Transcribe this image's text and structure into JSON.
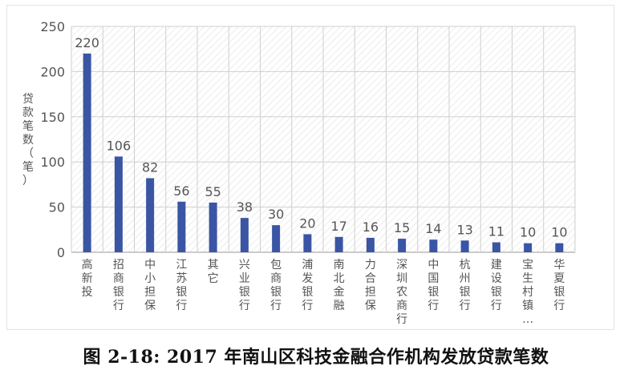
{
  "figure": {
    "caption": "图 2-18: 2017 年南山区科技金融合作机构发放贷款笔数"
  },
  "chart_data": {
    "type": "bar",
    "title": "",
    "xlabel": "",
    "ylabel": "贷款笔数（笔）",
    "ylim": [
      0,
      250
    ],
    "yticks": [
      0,
      50,
      100,
      150,
      200,
      250
    ],
    "grid": true,
    "legend": "none",
    "categories": [
      "高新投",
      "招商银行",
      "中小担保",
      "江苏银行",
      "其它",
      "兴业银行",
      "包商银行",
      "浦发银行",
      "南北金融",
      "力合担保",
      "深圳农商行",
      "中国银行",
      "杭州银行",
      "建设银行",
      "宝生村镇…",
      "华夏银行"
    ],
    "series": [
      {
        "values": [
          220,
          106,
          82,
          56,
          55,
          38,
          30,
          20,
          17,
          16,
          15,
          14,
          13,
          11,
          10,
          10
        ]
      }
    ],
    "data_labels": [
      "220",
      "106",
      "82",
      "56",
      "55",
      "38",
      "30",
      "20",
      "17",
      "16",
      "15",
      "14",
      "13",
      "11",
      "10",
      "10"
    ],
    "colors": {
      "bar": "#3a55a4",
      "grid": "#cfcfcf",
      "axis": "#9a9a9a",
      "text": "#555555",
      "hatch": "#e6e6e6"
    }
  }
}
